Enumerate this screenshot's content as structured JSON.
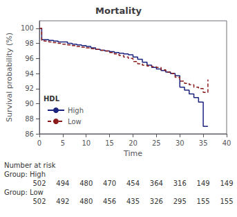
{
  "chart_data": {
    "type": "step",
    "title": "Mortality",
    "x_label": "Time",
    "y_label": "Survival probability (%)",
    "xlim": [
      0,
      40
    ],
    "ylim": [
      86,
      101
    ],
    "xticks": [
      0,
      5,
      10,
      15,
      20,
      25,
      30,
      35,
      40
    ],
    "yticks": [
      86,
      88,
      90,
      92,
      94,
      96,
      98,
      100
    ],
    "grid": false,
    "legend": "lower left",
    "legend_title": "HDL",
    "series": [
      {
        "name": "High",
        "color": "#1a237e",
        "line_style": "solid",
        "x": [
          0,
          0.5,
          1,
          2,
          3,
          4,
          5,
          6,
          7,
          8,
          9,
          10,
          11,
          12,
          13,
          14,
          15,
          16,
          17,
          18,
          19,
          20,
          21,
          22,
          23,
          24,
          25,
          26,
          27,
          28,
          29,
          30,
          31,
          32,
          33,
          34,
          35,
          36
        ],
        "values": [
          100,
          98.5,
          98.5,
          98.4,
          98.3,
          98.2,
          98.2,
          98.0,
          97.9,
          97.8,
          97.7,
          97.6,
          97.4,
          97.2,
          97.1,
          97.0,
          96.9,
          96.8,
          96.7,
          96.6,
          96.5,
          96.2,
          95.9,
          95.5,
          95.1,
          94.8,
          94.6,
          94.4,
          94.2,
          94.0,
          93.7,
          92.2,
          91.8,
          91.3,
          90.8,
          90.2,
          87.0,
          87.0
        ]
      },
      {
        "name": "Low",
        "color": "#8b1a1a",
        "line_style": "dashed",
        "x": [
          0,
          0.5,
          1,
          2,
          3,
          4,
          5,
          6,
          7,
          8,
          9,
          10,
          11,
          12,
          13,
          14,
          15,
          16,
          17,
          18,
          19,
          20,
          21,
          22,
          23,
          24,
          25,
          26,
          27,
          28,
          29,
          30,
          31,
          32,
          33,
          34,
          35,
          36
        ],
        "values": [
          100,
          98.4,
          98.3,
          98.2,
          98.1,
          98.0,
          97.9,
          97.8,
          97.7,
          97.6,
          97.5,
          97.4,
          97.3,
          97.2,
          97.1,
          97.0,
          96.8,
          96.6,
          96.4,
          96.2,
          96.0,
          95.6,
          95.3,
          95.1,
          95.0,
          94.9,
          94.8,
          94.5,
          94.2,
          94.0,
          93.5,
          93.0,
          92.7,
          92.5,
          92.2,
          92.0,
          91.5,
          93.2
        ]
      }
    ],
    "risk_table": {
      "label": "Number at risk",
      "times": [
        0,
        5,
        10,
        15,
        20,
        25,
        30,
        35,
        40
      ],
      "rows": [
        {
          "label": "Group: High",
          "values": [
            502,
            494,
            480,
            470,
            454,
            364,
            316,
            149,
            149
          ]
        },
        {
          "label": "Group: Low",
          "values": [
            502,
            492,
            480,
            456,
            435,
            326,
            295,
            155,
            155
          ]
        }
      ]
    }
  }
}
